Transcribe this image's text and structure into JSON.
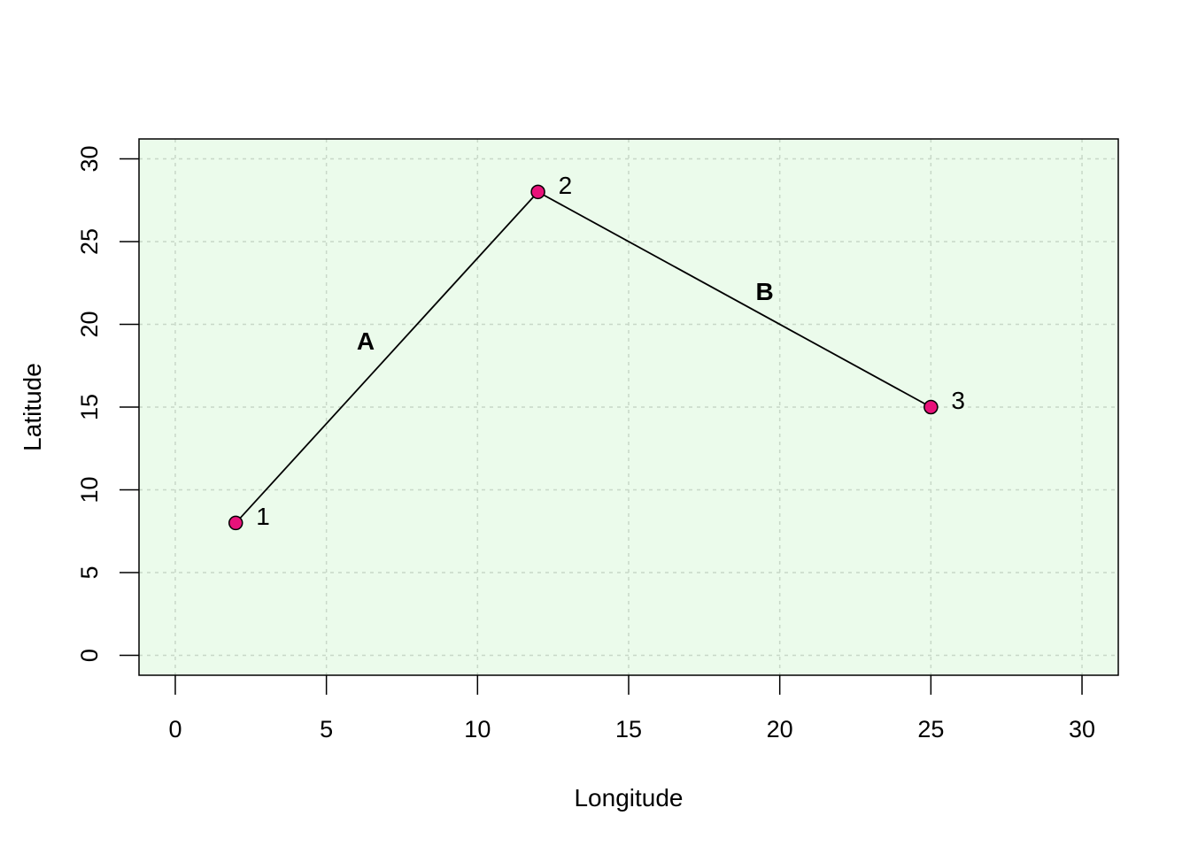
{
  "chart_data": {
    "type": "line",
    "title": "",
    "xlabel": "Longitude",
    "ylabel": "Latitude",
    "xlim": [
      -1.2,
      31.2
    ],
    "ylim": [
      -1.2,
      31.2
    ],
    "x_ticks": [
      0,
      5,
      10,
      15,
      20,
      25,
      30
    ],
    "y_ticks": [
      0,
      5,
      10,
      15,
      20,
      25,
      30
    ],
    "grid": true,
    "legend": "none",
    "points": [
      {
        "label": "1",
        "x": 2,
        "y": 8
      },
      {
        "label": "2",
        "x": 12,
        "y": 28
      },
      {
        "label": "3",
        "x": 25,
        "y": 15
      }
    ],
    "segments": [
      {
        "label": "A",
        "from": "1",
        "to": "2",
        "label_x": 6.3,
        "label_y": 19
      },
      {
        "label": "B",
        "from": "2",
        "to": "3",
        "label_x": 19.5,
        "label_y": 22
      }
    ],
    "colors": {
      "panel_background": "#EBFBEB",
      "grid": "#C8D8C8",
      "point_fill": "#E8127A",
      "point_stroke": "#000000",
      "line": "#000000"
    }
  }
}
